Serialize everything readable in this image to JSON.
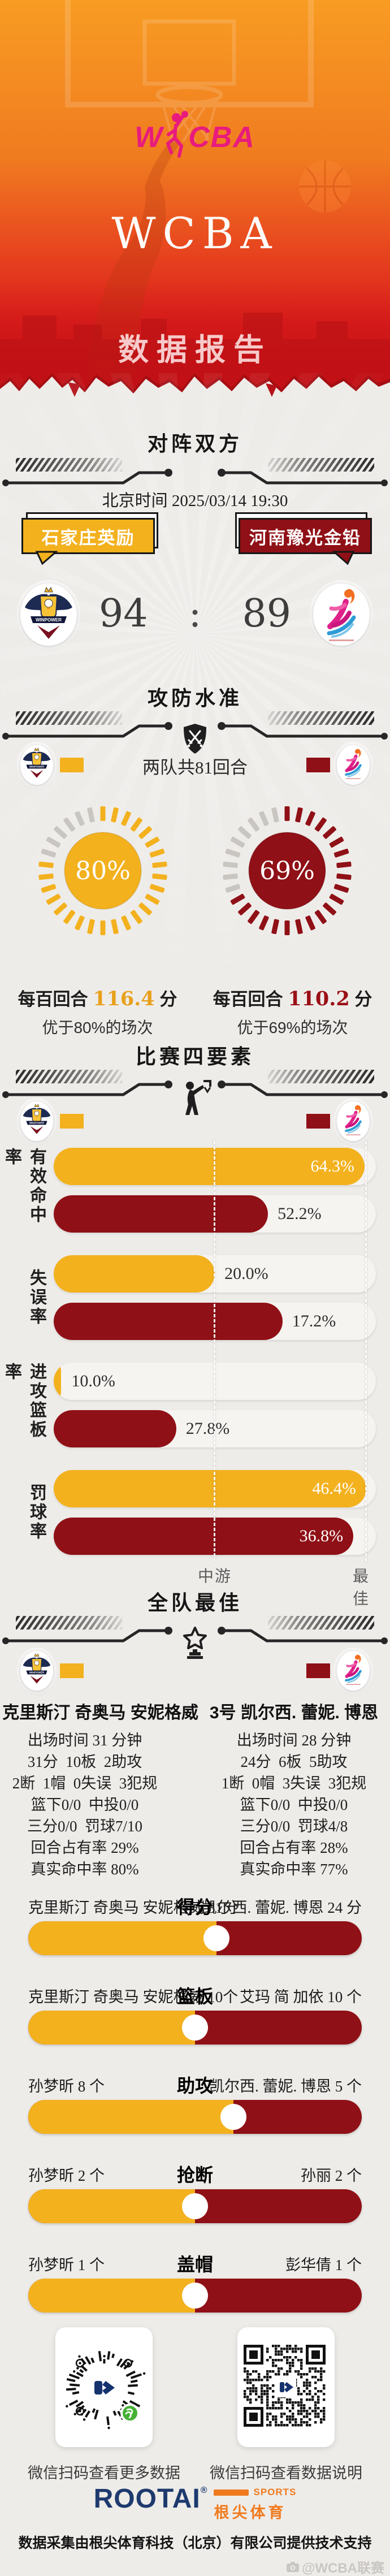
{
  "colors": {
    "home": "#f3b11e",
    "away": "#8f1016",
    "magenta": "#e81b7d",
    "navy": "#1e3a6e",
    "orange": "#f07a1d"
  },
  "hero": {
    "logo_w": "W",
    "logo_cba": "CBA",
    "title": "WCBA",
    "subtitle": "数据报告"
  },
  "matchup": {
    "heading": "对阵双方",
    "datetime": "北京时间 2025/03/14 19:30",
    "home_name": "石家庄英励",
    "away_name": "河南豫光金铅",
    "home_logo_text": "WINPOWER",
    "home_score": "94",
    "score_sep": ":",
    "away_score": "89"
  },
  "offdef": {
    "heading": "攻防水准",
    "possessions": "两队共81回合",
    "home": {
      "pct_label": "80%",
      "value": 80,
      "per_prefix": "每百回合 ",
      "per_value": "116.4",
      "per_suffix": " 分",
      "better": "优于80%的场次"
    },
    "away": {
      "pct_label": "69%",
      "value": 69,
      "per_prefix": "每百回合 ",
      "per_value": "110.2",
      "per_suffix": " 分",
      "better": "优于69%的场次"
    }
  },
  "factors": {
    "heading": "比赛四要素",
    "axis_mid": "中游",
    "axis_best": "最佳",
    "rows": [
      {
        "label": "有效命中率",
        "home": {
          "text": "64.3%",
          "width": "96.5%",
          "inside": true
        },
        "away": {
          "text": "52.2%",
          "width": "66.5%",
          "label_left": "69.5%"
        }
      },
      {
        "label": "失误率",
        "home": {
          "text": "20.0%",
          "width": "50%",
          "label_left": "53%"
        },
        "away": {
          "text": "17.2%",
          "width": "71%",
          "label_left": "74%"
        }
      },
      {
        "label": "进攻篮板率",
        "home": {
          "text": "10.0%",
          "width": "2.2%",
          "label_left": "5.5%"
        },
        "away": {
          "text": "27.8%",
          "width": "38%",
          "label_left": "41%"
        }
      },
      {
        "label": "罚球率",
        "home": {
          "text": "46.4%",
          "width": "97%",
          "inside": true
        },
        "away": {
          "text": "36.8%",
          "width": "93%",
          "inside": true
        }
      }
    ]
  },
  "best": {
    "heading": "全队最佳",
    "home_header": "3号 克里斯汀 奇奥马 安妮格威",
    "away_header": "3号 凯尔西. 蕾妮. 博恩",
    "home_lines": [
      "出场时间 31 分钟",
      "31分  10板  2助攻",
      "2断  1帽  0失误  3犯规",
      "篮下0/0  中投0/0",
      "三分0/0  罚球7/10",
      "回合占有率 29%",
      "真实命中率 80%"
    ],
    "away_lines": [
      "出场时间 28 分钟",
      "24分  6板  5助攻",
      "1断  0帽  3失误  3犯规",
      "篮下0/0  中投0/0",
      "三分0/0  罚球4/8",
      "回合占有率 28%",
      "真实命中率 77%"
    ],
    "rows": [
      {
        "stat": "得分",
        "left": "克里斯汀 奇奥马 安妮格威 31分",
        "right": "凯尔西. 蕾妮. 博恩 24 分",
        "split": "56.4%"
      },
      {
        "stat": "篮板",
        "left": "克里斯汀 奇奥马 安妮格威 10个",
        "right": "艾玛 简 加依 10 个",
        "split": "50%"
      },
      {
        "stat": "助攻",
        "left": "孙梦昕 8 个",
        "right": "凯尔西. 蕾妮. 博恩 5 个",
        "split": "61.5%"
      },
      {
        "stat": "抢断",
        "left": "孙梦昕 2 个",
        "right": "孙丽 2 个",
        "split": "50%"
      },
      {
        "stat": "盖帽",
        "left": "孙梦昕 1 个",
        "right": "彭华倩 1 个",
        "split": "50%"
      }
    ]
  },
  "qr": {
    "left_caption": "微信扫码查看更多数据",
    "right_caption": "微信扫码查看数据说明"
  },
  "footer": {
    "brand": "ROOTAI",
    "reg": "®",
    "sports": "SPORTS",
    "brand_cn": "根尖体育",
    "caption": "数据采集由根尖体育科技（北京）有限公司提供技术支持",
    "watermark": "@WCBA联赛"
  },
  "chart_data": [
    {
      "type": "bar",
      "title": "攻防水准",
      "note": "两队共81回合",
      "categories": [
        "石家庄英励",
        "河南豫光金铅"
      ],
      "series": [
        {
          "name": "每百回合得分",
          "values": [
            116.4,
            110.2
          ]
        },
        {
          "name": "优于场次百分位",
          "values": [
            80,
            69
          ]
        }
      ],
      "legend_position": "none"
    },
    {
      "type": "bar",
      "title": "比赛四要素",
      "unit": "%",
      "axis_labels": [
        "中游",
        "最佳"
      ],
      "categories": [
        "有效命中率",
        "失误率",
        "进攻篮板率",
        "罚球率"
      ],
      "series": [
        {
          "name": "石家庄英励",
          "values": [
            64.3,
            20.0,
            10.0,
            46.4
          ]
        },
        {
          "name": "河南豫光金铅",
          "values": [
            52.2,
            17.2,
            27.8,
            36.8
          ]
        }
      ]
    },
    {
      "type": "bar",
      "title": "全队最佳",
      "categories": [
        "得分",
        "篮板",
        "助攻",
        "抢断",
        "盖帽"
      ],
      "series": [
        {
          "name": "石家庄英励",
          "values": [
            31,
            10,
            8,
            2,
            1
          ],
          "players": [
            "克里斯汀 奇奥马 安妮格威",
            "克里斯汀 奇奥马 安妮格威",
            "孙梦昕",
            "孙梦昕",
            "孙梦昕"
          ]
        },
        {
          "name": "河南豫光金铅",
          "values": [
            24,
            10,
            5,
            2,
            1
          ],
          "players": [
            "凯尔西. 蕾妮. 博恩",
            "艾玛 简 加依",
            "凯尔西. 蕾妮. 博恩",
            "孙丽",
            "彭华倩"
          ]
        }
      ]
    },
    {
      "type": "table",
      "title": "全队最佳球员数据",
      "columns": [
        "3号 克里斯汀 奇奥马 安妮格威 (石家庄英励)",
        "3号 凯尔西. 蕾妮. 博恩 (河南豫光金铅)"
      ],
      "rows": [
        [
          "出场时间 31 分钟",
          "出场时间 28 分钟"
        ],
        [
          "31分 10板 2助攻",
          "24分 6板 5助攻"
        ],
        [
          "2断 1帽 0失误 3犯规",
          "1断 0帽 3失误 3犯规"
        ],
        [
          "篮下0/0 中投0/0",
          "篮下0/0 中投0/0"
        ],
        [
          "三分0/0 罚球7/10",
          "三分0/0 罚球4/8"
        ],
        [
          "回合占有率 29%",
          "回合占有率 28%"
        ],
        [
          "真实命中率 80%",
          "真实命中率 77%"
        ]
      ]
    },
    {
      "type": "bar",
      "title": "比分",
      "categories": [
        "石家庄英励",
        "河南豫光金铅"
      ],
      "values": [
        94,
        89
      ]
    }
  ]
}
